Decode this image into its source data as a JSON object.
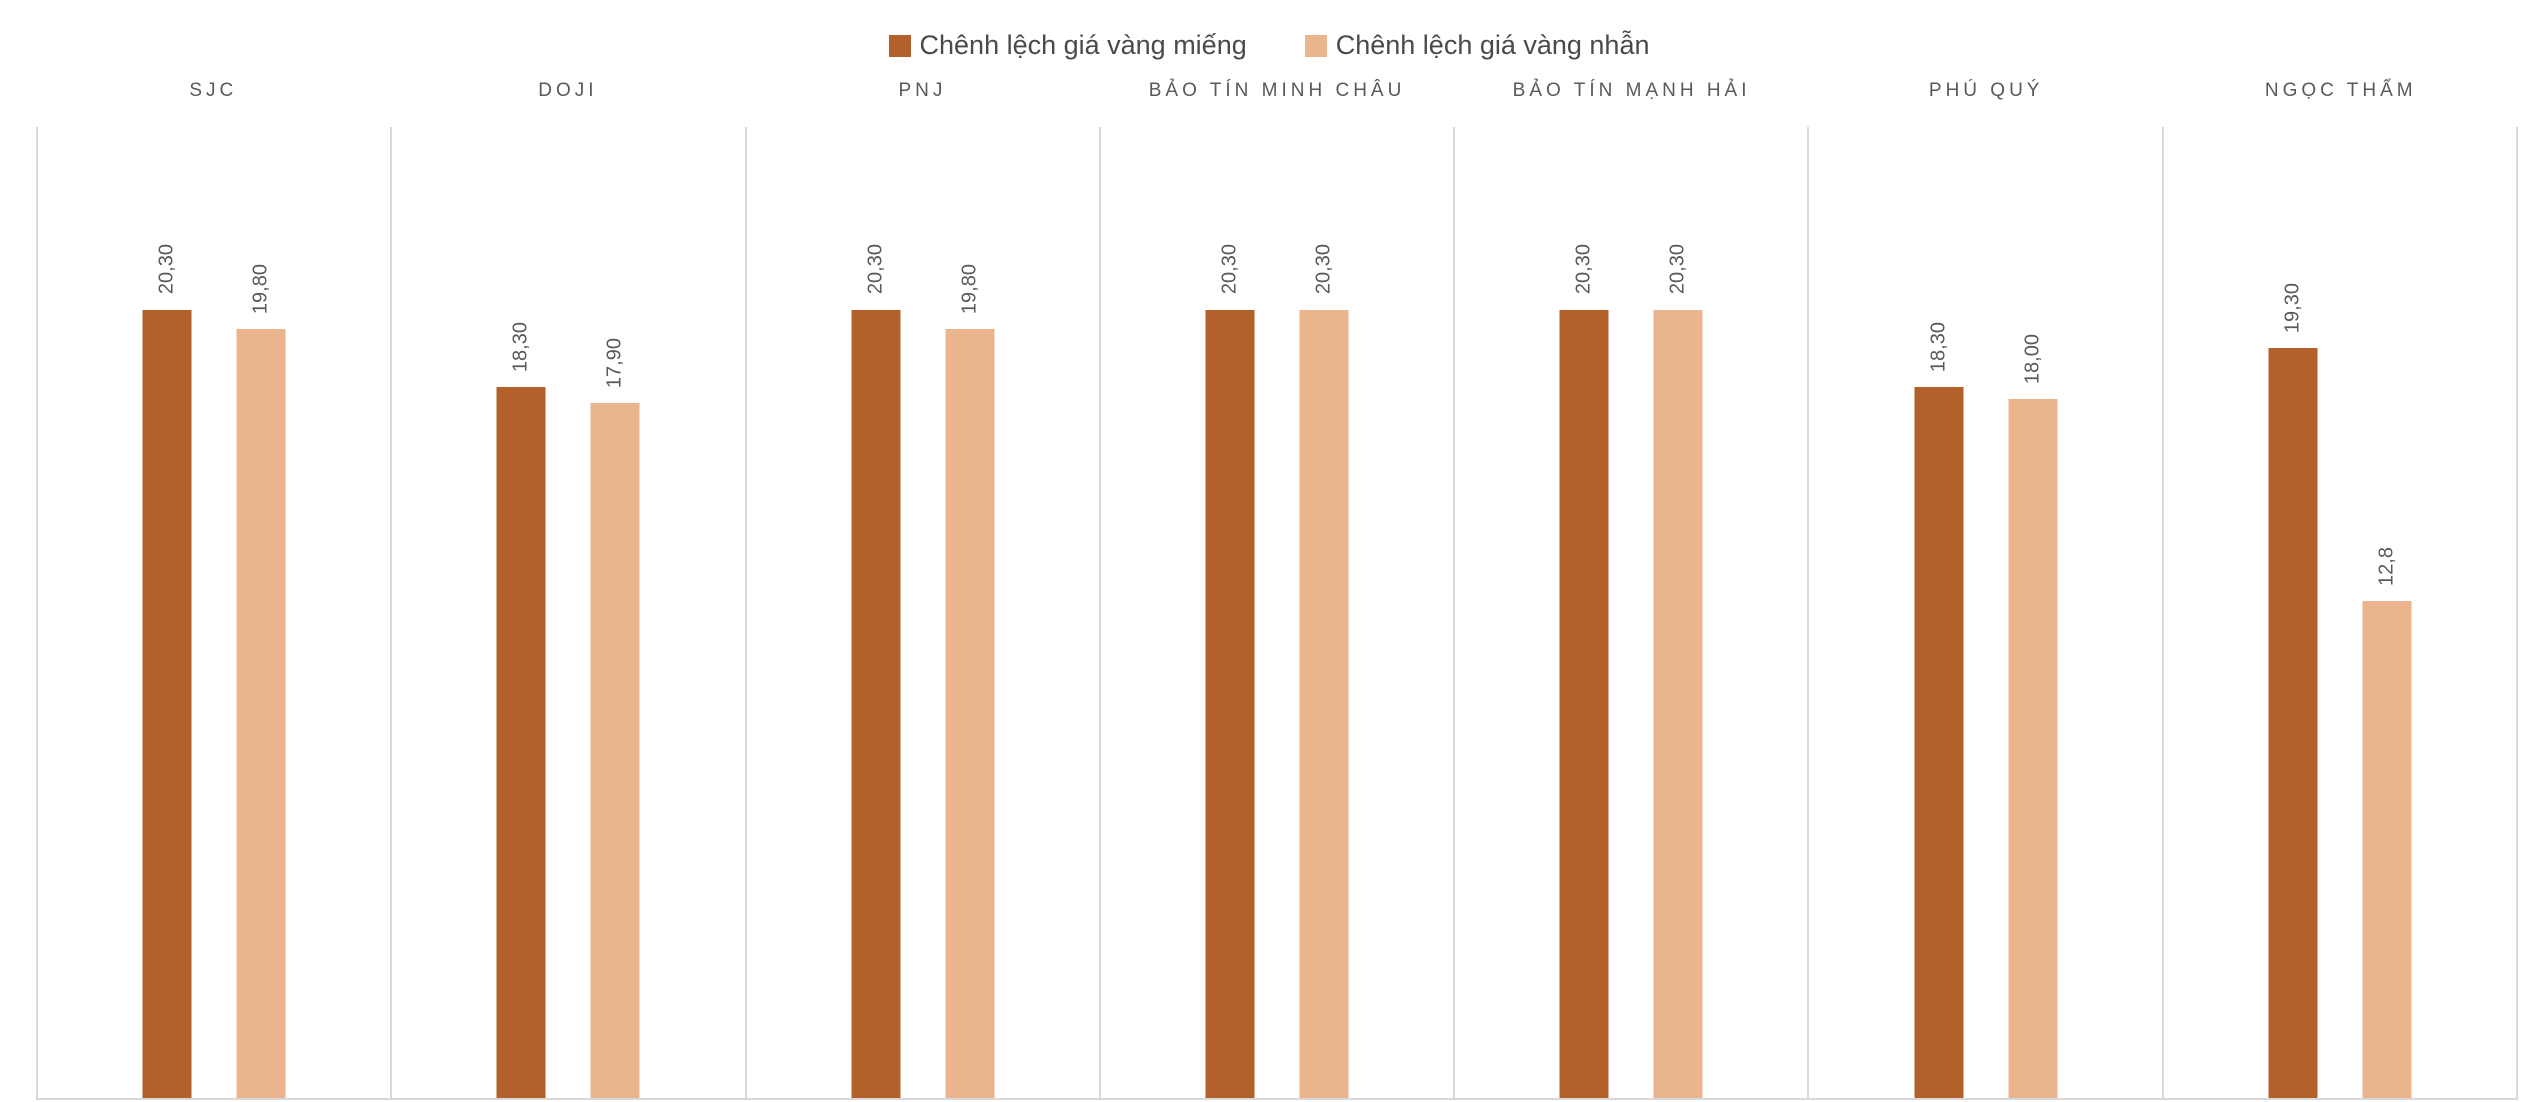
{
  "chart_data": {
    "type": "bar",
    "title": "",
    "xlabel": "",
    "ylabel": "",
    "ylim": [
      0,
      25
    ],
    "gridlines": false,
    "panel_separators": true,
    "legend_position": "top-center",
    "axis_line_color": "#D9D9D9",
    "text_color": "#595959",
    "value_label_rotation": "vertical-bottom-to-top",
    "categories": [
      "SJC",
      "DOJI",
      "PNJ",
      "BẢO TÍN MINH CHÂU",
      "BẢO TÍN MẠNH HẢI",
      "PHÚ QUÝ",
      "NGỌC THẨM"
    ],
    "series": [
      {
        "name": "Chênh lệch giá vàng miếng",
        "color": "#B4602B",
        "values": [
          20.3,
          18.3,
          20.3,
          20.3,
          20.3,
          18.3,
          19.3
        ],
        "labels": [
          "20,30",
          "18,30",
          "20,30",
          "20,30",
          "20,30",
          "18,30",
          "19,30"
        ]
      },
      {
        "name": "Chênh lệch giá vàng nhẫn",
        "color": "#EAB58C",
        "values": [
          19.8,
          17.9,
          19.8,
          20.3,
          20.3,
          18.0,
          12.8
        ],
        "labels": [
          "19,80",
          "17,90",
          "19,80",
          "20,30",
          "20,30",
          "18,00",
          "12,8"
        ]
      }
    ]
  }
}
